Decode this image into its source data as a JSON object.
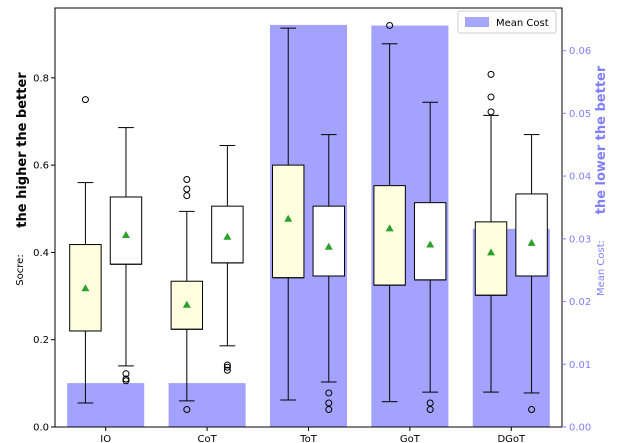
{
  "chart_data": {
    "type": "box",
    "categories": [
      "IO",
      "CoT",
      "ToT",
      "GoT",
      "DGoT"
    ],
    "left_axis": {
      "title": "the higher the better",
      "label": "Socre:",
      "ylim": [
        0,
        0.96
      ],
      "ticks": [
        0.0,
        0.2,
        0.4,
        0.6,
        0.8
      ],
      "tick_labels": [
        "0.0",
        "0.2",
        "0.4",
        "0.6",
        "0.8"
      ]
    },
    "right_axis": {
      "title": "the lower the better",
      "label": "Mean Cost:",
      "ylim": [
        0,
        0.0668
      ],
      "ticks": [
        0.0,
        0.01,
        0.02,
        0.03,
        0.04,
        0.05,
        0.06
      ],
      "tick_labels": [
        "0.00",
        "0.01",
        "0.02",
        "0.03",
        "0.04",
        "0.05",
        "0.06"
      ],
      "color": "#8080ff"
    },
    "legend": {
      "label": "Mean Cost",
      "location": "top-right"
    },
    "bars": {
      "name": "Mean Cost",
      "color": "#8080ff",
      "values": [
        0.007,
        0.007,
        0.0641,
        0.064,
        0.0316
      ]
    },
    "boxes": [
      {
        "category": "IO",
        "group": "first",
        "whisker_low": 0.055,
        "q1": 0.22,
        "median": 0.22,
        "q3": 0.418,
        "whisker_high": 0.56,
        "mean": 0.318,
        "outliers": [
          0.75
        ]
      },
      {
        "category": "IO",
        "group": "second",
        "whisker_low": 0.14,
        "q1": 0.373,
        "median": 0.373,
        "q3": 0.527,
        "whisker_high": 0.686,
        "mean": 0.44,
        "outliers": [
          0.122,
          0.11,
          0.106
        ]
      },
      {
        "category": "CoT",
        "group": "first",
        "whisker_low": 0.06,
        "q1": 0.224,
        "median": 0.224,
        "q3": 0.334,
        "whisker_high": 0.494,
        "mean": 0.28,
        "outliers": [
          0.04,
          0.53,
          0.545,
          0.567
        ]
      },
      {
        "category": "CoT",
        "group": "second",
        "whisker_low": 0.186,
        "q1": 0.376,
        "median": 0.376,
        "q3": 0.506,
        "whisker_high": 0.645,
        "mean": 0.436,
        "outliers": [
          0.13,
          0.137,
          0.142
        ]
      },
      {
        "category": "ToT",
        "group": "first",
        "whisker_low": 0.062,
        "q1": 0.342,
        "median": 0.342,
        "q3": 0.6,
        "whisker_high": 0.914,
        "mean": 0.477,
        "outliers": []
      },
      {
        "category": "ToT",
        "group": "second",
        "whisker_low": 0.103,
        "q1": 0.346,
        "median": 0.346,
        "q3": 0.506,
        "whisker_high": 0.67,
        "mean": 0.413,
        "outliers": [
          0.04,
          0.055,
          0.078
        ]
      },
      {
        "category": "GoT",
        "group": "first",
        "whisker_low": 0.058,
        "q1": 0.325,
        "median": 0.325,
        "q3": 0.553,
        "whisker_high": 0.878,
        "mean": 0.455,
        "outliers": [
          0.92
        ]
      },
      {
        "category": "GoT",
        "group": "second",
        "whisker_low": 0.08,
        "q1": 0.337,
        "median": 0.337,
        "q3": 0.514,
        "whisker_high": 0.744,
        "mean": 0.418,
        "outliers": [
          0.04,
          0.055
        ]
      },
      {
        "category": "DGoT",
        "group": "first",
        "whisker_low": 0.08,
        "q1": 0.302,
        "median": 0.302,
        "q3": 0.47,
        "whisker_high": 0.714,
        "mean": 0.4,
        "outliers": [
          0.722,
          0.756,
          0.808
        ]
      },
      {
        "category": "DGoT",
        "group": "second",
        "whisker_low": 0.078,
        "q1": 0.346,
        "median": 0.346,
        "q3": 0.534,
        "whisker_high": 0.67,
        "mean": 0.422,
        "outliers": [
          0.04
        ]
      }
    ],
    "colors": {
      "box_first_fill": "#ffffe0",
      "box_second_fill": "#ffffff",
      "mean_marker": "#2ca02c",
      "box_stroke": "#000000"
    },
    "grid": false
  }
}
